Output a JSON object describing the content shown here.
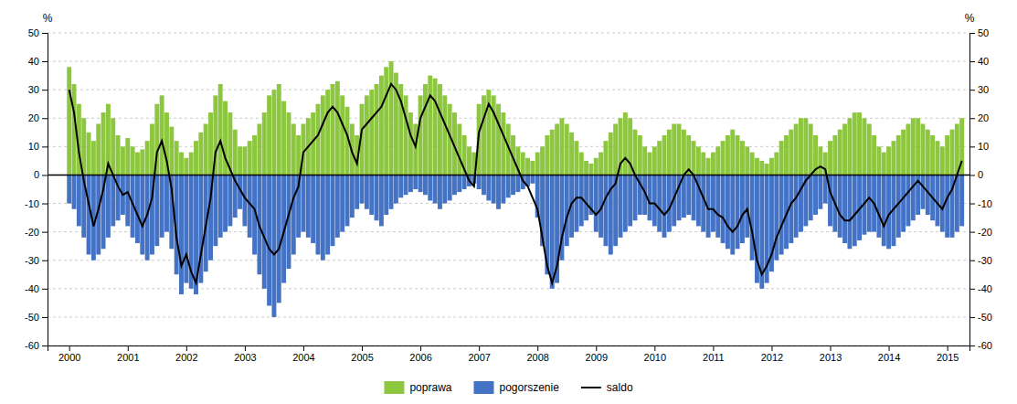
{
  "chart_data": {
    "type": "bar",
    "ylabel": "%",
    "y2label": "%",
    "grid": true,
    "legend": "bottom",
    "xlim": [
      1999.63,
      2015.38
    ],
    "xticks": [
      2000,
      2001,
      2002,
      2003,
      2004,
      2005,
      2006,
      2007,
      2008,
      2009,
      2010,
      2011,
      2012,
      2013,
      2014,
      2015
    ],
    "ylim": [
      -60,
      50
    ],
    "yticks": [
      -60,
      -50,
      -40,
      -30,
      -20,
      -10,
      0,
      10,
      20,
      30,
      40,
      50
    ],
    "y2lim": [
      -60,
      50
    ],
    "y2ticks": [
      -60,
      -50,
      -40,
      -30,
      -20,
      -10,
      0,
      10,
      20,
      30,
      40,
      50
    ],
    "x": [
      2000,
      2000.083333,
      2000.166667,
      2000.25,
      2000.333333,
      2000.416667,
      2000.5,
      2000.583333,
      2000.666667,
      2000.75,
      2000.833333,
      2000.916667,
      2001,
      2001.083333,
      2001.166667,
      2001.25,
      2001.333333,
      2001.416667,
      2001.5,
      2001.583333,
      2001.666667,
      2001.75,
      2001.833333,
      2001.916667,
      2002,
      2002.083333,
      2002.166667,
      2002.25,
      2002.333333,
      2002.416667,
      2002.5,
      2002.583333,
      2002.666667,
      2002.75,
      2002.833333,
      2002.916667,
      2003,
      2003.083333,
      2003.166667,
      2003.25,
      2003.333333,
      2003.416667,
      2003.5,
      2003.583333,
      2003.666667,
      2003.75,
      2003.833333,
      2003.916667,
      2004,
      2004.083333,
      2004.166667,
      2004.25,
      2004.333333,
      2004.416667,
      2004.5,
      2004.583333,
      2004.666667,
      2004.75,
      2004.833333,
      2004.916667,
      2005,
      2005.083333,
      2005.166667,
      2005.25,
      2005.333333,
      2005.416667,
      2005.5,
      2005.583333,
      2005.666667,
      2005.75,
      2005.833333,
      2005.916667,
      2006,
      2006.083333,
      2006.166667,
      2006.25,
      2006.333333,
      2006.416667,
      2006.5,
      2006.583333,
      2006.666667,
      2006.75,
      2006.833333,
      2006.916667,
      2007,
      2007.083333,
      2007.166667,
      2007.25,
      2007.333333,
      2007.416667,
      2007.5,
      2007.583333,
      2007.666667,
      2007.75,
      2007.833333,
      2007.916667,
      2008,
      2008.083333,
      2008.166667,
      2008.25,
      2008.333333,
      2008.416667,
      2008.5,
      2008.583333,
      2008.666667,
      2008.75,
      2008.833333,
      2008.916667,
      2009,
      2009.083333,
      2009.166667,
      2009.25,
      2009.333333,
      2009.416667,
      2009.5,
      2009.583333,
      2009.666667,
      2009.75,
      2009.833333,
      2009.916667,
      2010,
      2010.083333,
      2010.166667,
      2010.25,
      2010.333333,
      2010.416667,
      2010.5,
      2010.583333,
      2010.666667,
      2010.75,
      2010.833333,
      2010.916667,
      2011,
      2011.083333,
      2011.166667,
      2011.25,
      2011.333333,
      2011.416667,
      2011.5,
      2011.583333,
      2011.666667,
      2011.75,
      2011.833333,
      2011.916667,
      2012,
      2012.083333,
      2012.166667,
      2012.25,
      2012.333333,
      2012.416667,
      2012.5,
      2012.583333,
      2012.666667,
      2012.75,
      2012.833333,
      2012.916667,
      2013,
      2013.083333,
      2013.166667,
      2013.25,
      2013.333333,
      2013.416667,
      2013.5,
      2013.583333,
      2013.666667,
      2013.75,
      2013.833333,
      2013.916667,
      2014,
      2014.083333,
      2014.166667,
      2014.25,
      2014.333333,
      2014.416667,
      2014.5,
      2014.583333,
      2014.666667,
      2014.75,
      2014.833333,
      2014.916667,
      2015,
      2015.083333,
      2015.166667,
      2015.25
    ],
    "series": [
      {
        "name": "poprawa",
        "type": "bar",
        "color": "#8DC63F",
        "values": [
          38,
          32,
          25,
          20,
          15,
          12,
          18,
          22,
          25,
          20,
          14,
          10,
          13,
          10,
          8,
          9,
          12,
          18,
          25,
          28,
          22,
          17,
          12,
          8,
          6,
          8,
          12,
          15,
          18,
          22,
          28,
          32,
          26,
          22,
          16,
          10,
          10,
          12,
          14,
          18,
          22,
          28,
          30,
          32,
          26,
          22,
          18,
          14,
          18,
          20,
          22,
          25,
          28,
          30,
          32,
          33,
          28,
          24,
          18,
          14,
          25,
          28,
          30,
          32,
          35,
          38,
          40,
          36,
          32,
          28,
          22,
          18,
          28,
          32,
          35,
          34,
          32,
          28,
          25,
          22,
          18,
          14,
          10,
          8,
          25,
          28,
          30,
          28,
          25,
          22,
          18,
          14,
          10,
          8,
          6,
          5,
          8,
          10,
          14,
          16,
          18,
          20,
          18,
          15,
          12,
          8,
          5,
          4,
          6,
          8,
          12,
          15,
          18,
          20,
          22,
          20,
          16,
          14,
          10,
          8,
          10,
          12,
          14,
          16,
          18,
          18,
          16,
          14,
          12,
          10,
          8,
          6,
          8,
          10,
          12,
          14,
          16,
          14,
          12,
          10,
          8,
          6,
          5,
          4,
          6,
          8,
          12,
          14,
          16,
          18,
          20,
          20,
          18,
          14,
          10,
          8,
          12,
          14,
          16,
          18,
          20,
          22,
          22,
          20,
          18,
          14,
          10,
          8,
          10,
          12,
          14,
          16,
          18,
          20,
          20,
          18,
          16,
          14,
          12,
          10,
          14,
          16,
          18,
          20
        ]
      },
      {
        "name": "pogorszenie",
        "type": "bar",
        "color": "#4472C4",
        "values": [
          -10,
          -12,
          -18,
          -22,
          -28,
          -30,
          -28,
          -26,
          -22,
          -18,
          -16,
          -14,
          -18,
          -22,
          -24,
          -28,
          -30,
          -28,
          -25,
          -22,
          -20,
          -26,
          -35,
          -42,
          -38,
          -40,
          -42,
          -38,
          -34,
          -30,
          -25,
          -22,
          -20,
          -18,
          -15,
          -12,
          -18,
          -22,
          -28,
          -35,
          -40,
          -46,
          -50,
          -45,
          -38,
          -33,
          -28,
          -22,
          -20,
          -22,
          -24,
          -28,
          -30,
          -28,
          -25,
          -22,
          -20,
          -18,
          -15,
          -12,
          -10,
          -12,
          -14,
          -16,
          -18,
          -14,
          -12,
          -10,
          -8,
          -7,
          -6,
          -5,
          -6,
          -7,
          -9,
          -10,
          -12,
          -10,
          -9,
          -7,
          -6,
          -5,
          -4,
          -3,
          -5,
          -7,
          -9,
          -10,
          -12,
          -10,
          -8,
          -7,
          -6,
          -5,
          -4,
          -3,
          -15,
          -25,
          -35,
          -40,
          -38,
          -30,
          -25,
          -22,
          -20,
          -18,
          -16,
          -14,
          -20,
          -22,
          -25,
          -28,
          -25,
          -22,
          -20,
          -18,
          -16,
          -14,
          -14,
          -16,
          -18,
          -20,
          -22,
          -20,
          -18,
          -16,
          -15,
          -14,
          -16,
          -18,
          -20,
          -22,
          -20,
          -22,
          -24,
          -26,
          -28,
          -26,
          -24,
          -22,
          -30,
          -38,
          -40,
          -38,
          -34,
          -30,
          -28,
          -26,
          -24,
          -22,
          -20,
          -18,
          -16,
          -14,
          -12,
          -10,
          -18,
          -20,
          -22,
          -24,
          -26,
          -25,
          -23,
          -21,
          -20,
          -20,
          -22,
          -25,
          -26,
          -25,
          -22,
          -20,
          -18,
          -16,
          -14,
          -12,
          -14,
          -16,
          -18,
          -20,
          -22,
          -22,
          -20,
          -18
        ]
      },
      {
        "name": "saldo",
        "type": "line",
        "color": "#000000",
        "values": [
          30,
          22,
          8,
          -2,
          -10,
          -18,
          -12,
          -5,
          4,
          0,
          -4,
          -7,
          -6,
          -10,
          -14,
          -18,
          -14,
          -8,
          8,
          12,
          5,
          -5,
          -22,
          -32,
          -28,
          -34,
          -38,
          -28,
          -18,
          -8,
          8,
          12,
          6,
          2,
          -2,
          -5,
          -8,
          -10,
          -12,
          -18,
          -22,
          -26,
          -28,
          -26,
          -20,
          -14,
          -8,
          -4,
          8,
          10,
          12,
          14,
          18,
          22,
          24,
          22,
          18,
          14,
          8,
          4,
          16,
          18,
          20,
          22,
          24,
          28,
          32,
          30,
          26,
          20,
          14,
          10,
          20,
          24,
          28,
          26,
          22,
          18,
          14,
          10,
          6,
          2,
          -2,
          -4,
          15,
          20,
          25,
          22,
          18,
          14,
          10,
          6,
          2,
          -2,
          -4,
          -8,
          -12,
          -22,
          -32,
          -38,
          -32,
          -22,
          -15,
          -10,
          -8,
          -8,
          -10,
          -12,
          -14,
          -12,
          -8,
          -5,
          -3,
          4,
          6,
          4,
          0,
          -3,
          -6,
          -10,
          -10,
          -12,
          -14,
          -12,
          -8,
          -4,
          0,
          2,
          0,
          -4,
          -8,
          -12,
          -12,
          -14,
          -15,
          -18,
          -20,
          -18,
          -14,
          -12,
          -20,
          -30,
          -35,
          -32,
          -28,
          -22,
          -18,
          -14,
          -10,
          -8,
          -5,
          -2,
          0,
          2,
          3,
          2,
          -6,
          -10,
          -14,
          -16,
          -16,
          -14,
          -12,
          -10,
          -8,
          -10,
          -14,
          -18,
          -14,
          -12,
          -10,
          -8,
          -6,
          -4,
          -2,
          -4,
          -6,
          -8,
          -10,
          -12,
          -8,
          -5,
          0,
          5
        ]
      }
    ]
  }
}
